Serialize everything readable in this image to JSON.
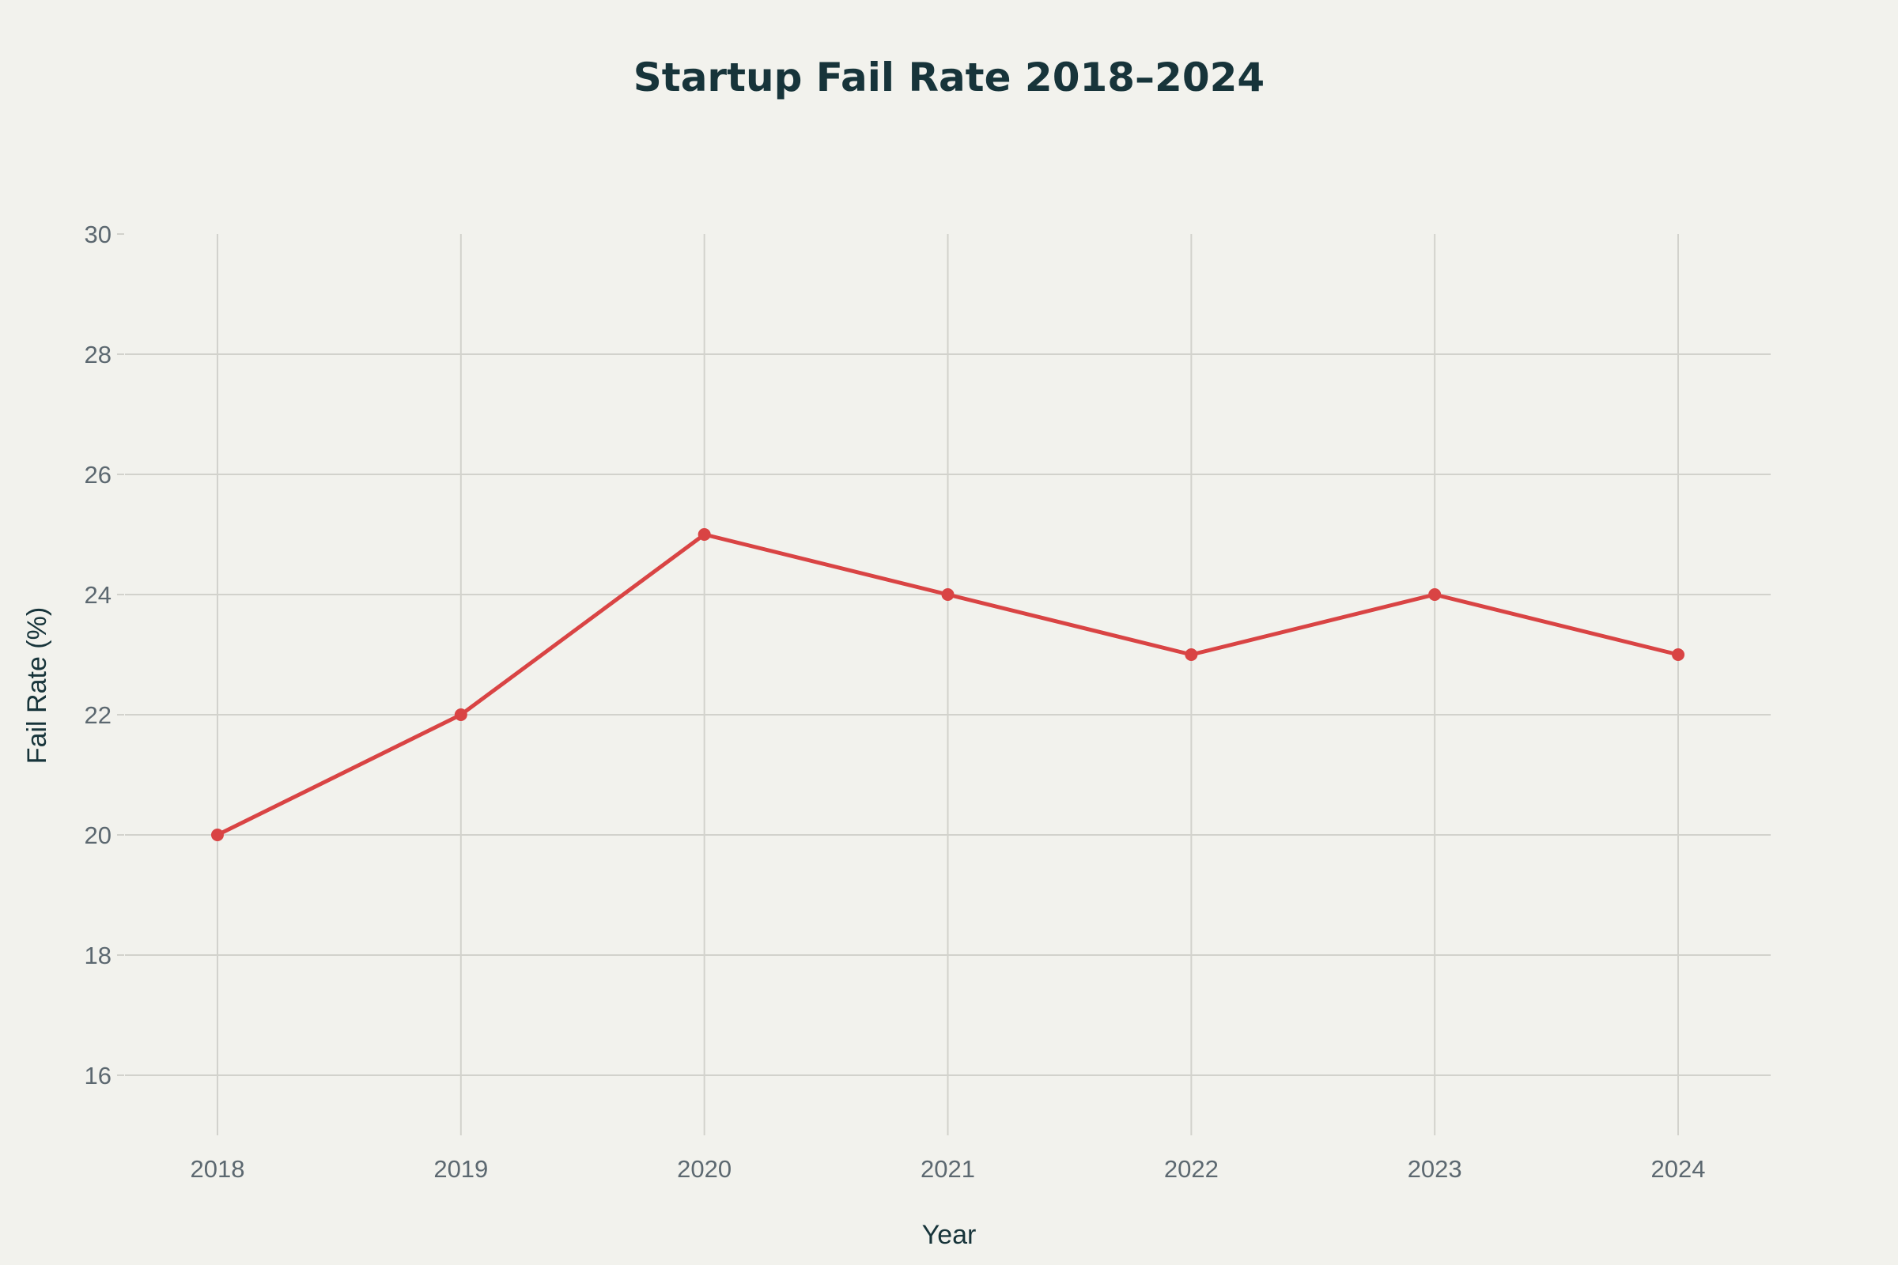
{
  "chart_data": {
    "type": "line",
    "title": "Startup Fail Rate 2018–2024",
    "xlabel": "Year",
    "ylabel": "Fail Rate (%)",
    "x": [
      2018,
      2019,
      2020,
      2021,
      2022,
      2023,
      2024
    ],
    "series": [
      {
        "name": "Fail Rate",
        "values": [
          20,
          22,
          25,
          24,
          23,
          24,
          23
        ],
        "color": "#d94444"
      }
    ],
    "xticks": [
      "2018",
      "2019",
      "2020",
      "2021",
      "2022",
      "2023",
      "2024"
    ],
    "yticks": [
      "16",
      "18",
      "20",
      "22",
      "24",
      "26",
      "28",
      "30"
    ],
    "xlim": [
      2017.62,
      2024.38
    ],
    "ylim": [
      15,
      30
    ],
    "grid": true,
    "legend": "none"
  }
}
